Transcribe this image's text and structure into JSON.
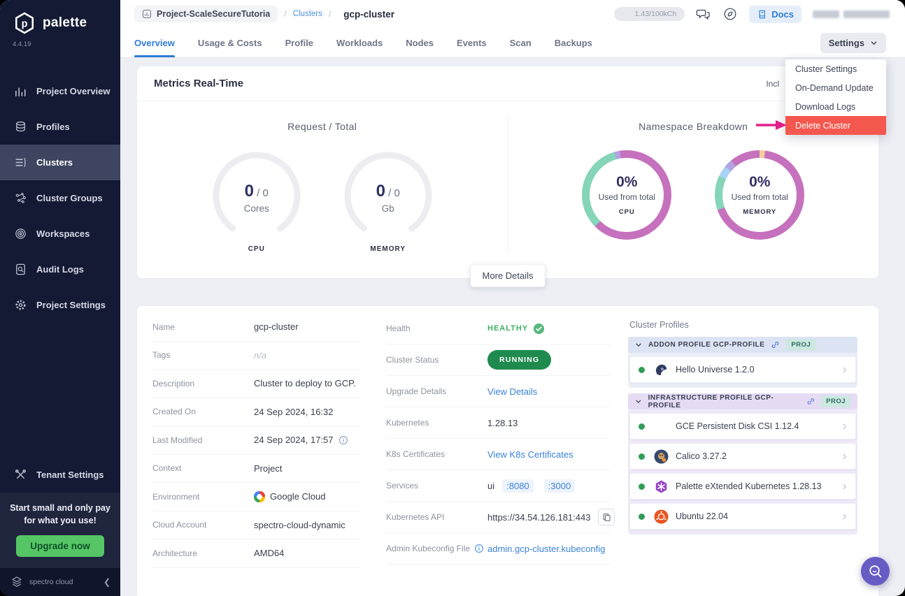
{
  "sidebar": {
    "brand": "palette",
    "version": "4.4.19",
    "items": [
      {
        "label": "Project Overview",
        "icon": "chart",
        "active": false
      },
      {
        "label": "Profiles",
        "icon": "layers",
        "active": false
      },
      {
        "label": "Clusters",
        "icon": "list",
        "active": true
      },
      {
        "label": "Cluster Groups",
        "icon": "nodes",
        "active": false
      },
      {
        "label": "Workspaces",
        "icon": "target",
        "active": false
      },
      {
        "label": "Audit Logs",
        "icon": "doc-search",
        "active": false
      },
      {
        "label": "Project Settings",
        "icon": "gear",
        "active": false
      }
    ],
    "tenant_settings": "Tenant Settings",
    "promo_line1": "Start small and only pay",
    "promo_line2": "for what you use!",
    "upgrade_button": "Upgrade now",
    "footer_brand": "spectro cloud"
  },
  "header": {
    "project_chip": "Project-ScaleSecureTutoria",
    "breadcrumb_link": "Clusters",
    "breadcrumb_current": "gcp-cluster",
    "usage_pill": "1.43/100kCh",
    "docs_button": "Docs"
  },
  "tabs": {
    "items": [
      "Overview",
      "Usage & Costs",
      "Profile",
      "Workloads",
      "Nodes",
      "Events",
      "Scan",
      "Backups"
    ],
    "active": "Overview",
    "settings_button": "Settings"
  },
  "settings_menu": {
    "items": [
      "Cluster Settings",
      "On-Demand Update",
      "Download Logs",
      "Delete Cluster"
    ],
    "highlighted": "Delete Cluster",
    "highlight_color": "#f4574d",
    "annotation_arrow_color": "#e0218a"
  },
  "metrics": {
    "title": "Metrics Real-Time",
    "clipped_text": "Incl",
    "request_total": {
      "title": "Request / Total",
      "arc_color": "#ededf1",
      "gauges": [
        {
          "value": "0",
          "total": "0",
          "unit": "Cores",
          "caption": "CPU"
        },
        {
          "value": "0",
          "total": "0",
          "unit": "Gb",
          "caption": "MEMORY"
        }
      ]
    },
    "namespace_breakdown": {
      "title": "Namespace Breakdown",
      "donuts": [
        {
          "percent": "0%",
          "subtitle": "Used from total",
          "caption": "CPU",
          "segments": [
            {
              "color": "#c671bd",
              "frac": 0.625
            },
            {
              "color": "#85d5b8",
              "frac": 0.33
            },
            {
              "color": "#b3a3e3",
              "frac": 0.02
            },
            {
              "color": "#c671bd",
              "frac": 0.025
            }
          ]
        },
        {
          "percent": "0%",
          "subtitle": "Used from total",
          "caption": "MEMORY",
          "segments": [
            {
              "color": "#f3cf9c",
              "frac": 0.02
            },
            {
              "color": "#c671bd",
              "frac": 0.675
            },
            {
              "color": "#85d5b8",
              "frac": 0.125
            },
            {
              "color": "#a9d3f5",
              "frac": 0.04
            },
            {
              "color": "#b3a3e3",
              "frac": 0.03
            },
            {
              "color": "#c671bd",
              "frac": 0.11
            }
          ]
        }
      ]
    },
    "more_details_button": "More Details"
  },
  "details": {
    "left": [
      {
        "label": "Name",
        "value": "gcp-cluster"
      },
      {
        "label": "Tags",
        "value": "n/a",
        "muted": true
      },
      {
        "label": "Description",
        "value": "Cluster to deploy to GCP."
      },
      {
        "label": "Created On",
        "value": "24 Sep 2024, 16:32"
      },
      {
        "label": "Last Modified",
        "value": "24 Sep 2024, 17:57",
        "value_info": true
      },
      {
        "label": "Context",
        "value": "Project"
      },
      {
        "label": "Environment",
        "value": "Google Cloud",
        "env_icon": "google-cloud"
      },
      {
        "label": "Cloud Account",
        "value": "spectro-cloud-dynamic"
      },
      {
        "label": "Architecture",
        "value": "AMD64"
      }
    ],
    "middle": [
      {
        "label": "Health",
        "type": "health",
        "value": "HEALTHY"
      },
      {
        "label": "Cluster Status",
        "type": "pill",
        "value": "RUNNING"
      },
      {
        "label": "Upgrade Details",
        "type": "link",
        "value": "View Details"
      },
      {
        "label": "Kubernetes",
        "type": "text",
        "value": "1.28.13"
      },
      {
        "label": "K8s Certificates",
        "type": "link",
        "value": "View K8s Certificates"
      },
      {
        "label": "Services",
        "type": "services",
        "prefix": "ui",
        "ports": [
          ":8080",
          ":3000"
        ]
      },
      {
        "label": "Kubernetes API",
        "type": "api",
        "value": "https://34.54.126.181:443"
      },
      {
        "label": "Admin Kubeconfig File",
        "type": "link",
        "value": "admin.gcp-cluster.kubeconfig",
        "label_info": true
      }
    ]
  },
  "profiles_panel": {
    "title": "Cluster Profiles",
    "sections": [
      {
        "header": "ADDON PROFILE GCP-PROFILE",
        "badge": "PROJ",
        "tint": "blue",
        "rows": [
          {
            "name": "Hello Universe 1.2.0",
            "icon": "hello-universe",
            "status_color": "#2f9e57"
          }
        ]
      },
      {
        "header": "INFRASTRUCTURE PROFILE GCP-PROFILE",
        "badge": "PROJ",
        "tint": "purple",
        "rows": [
          {
            "name": "GCE Persistent Disk CSI 1.12.4",
            "icon": "gce-disk",
            "status_color": "#2f9e57"
          },
          {
            "name": "Calico 3.27.2",
            "icon": "calico",
            "status_color": "#2f9e57"
          },
          {
            "name": "Palette eXtended Kubernetes 1.28.13",
            "icon": "pxk",
            "status_color": "#2f9e57"
          },
          {
            "name": "Ubuntu 22.04",
            "icon": "ubuntu",
            "status_color": "#2f9e57"
          }
        ]
      }
    ]
  }
}
